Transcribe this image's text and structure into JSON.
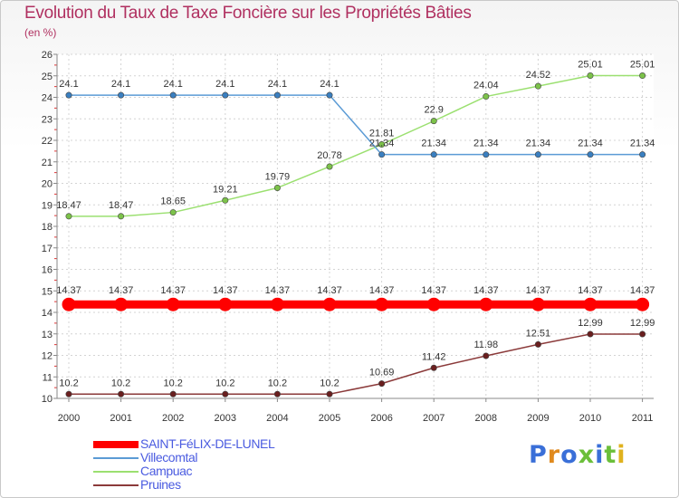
{
  "title": "Evolution du Taux de Taxe Foncière sur les Propriétés Bâties",
  "unit_label": "(en %)",
  "brand": "Proxiti",
  "chart_data": {
    "type": "line",
    "title": "Evolution du Taux de Taxe Foncière sur les Propriétés Bâties",
    "ylabel": "(en %)",
    "xlabel": "",
    "ylim": [
      10,
      26
    ],
    "yticks": [
      10,
      11,
      12,
      13,
      14,
      15,
      16,
      17,
      18,
      19,
      20,
      21,
      22,
      23,
      24,
      25,
      26
    ],
    "categories": [
      "2000",
      "2001",
      "2002",
      "2003",
      "2004",
      "2005",
      "2006",
      "2007",
      "2008",
      "2009",
      "2010",
      "2011"
    ],
    "legend_position": "bottom-left",
    "series": [
      {
        "name": "SAINT-FéLIX-DE-LUNEL",
        "color": "#ff0000",
        "point_color": "#ff0000",
        "values": [
          14.37,
          14.37,
          14.37,
          14.37,
          14.37,
          14.37,
          14.37,
          14.37,
          14.37,
          14.37,
          14.37,
          14.37
        ],
        "labels": [
          "14.37",
          "14.37",
          "14.37",
          "14.37",
          "14.37",
          "14.37",
          "14.37",
          "14.37",
          "14.37",
          "14.37",
          "14.37",
          "14.37"
        ]
      },
      {
        "name": "Villecomtal",
        "color": "#5b9bd5",
        "point_color": "#3a7fc0",
        "values": [
          24.1,
          24.1,
          24.1,
          24.1,
          24.1,
          24.1,
          21.34,
          21.34,
          21.34,
          21.34,
          21.34,
          21.34
        ],
        "labels": [
          "24.1",
          "24.1",
          "24.1",
          "24.1",
          "24.1",
          "24.1",
          "21.34",
          "21.34",
          "21.34",
          "21.34",
          "21.34",
          "21.34"
        ]
      },
      {
        "name": "Campuac",
        "color": "#9be070",
        "point_color": "#7cc24a",
        "values": [
          18.47,
          18.47,
          18.65,
          19.21,
          19.79,
          20.78,
          21.81,
          22.9,
          24.04,
          24.52,
          25.01,
          25.01
        ],
        "labels": [
          "18.47",
          "18.47",
          "18.65",
          "19.21",
          "19.79",
          "20.78",
          "21.81",
          "22.9",
          "24.04",
          "24.52",
          "25.01",
          "25.01"
        ]
      },
      {
        "name": "Pruines",
        "color": "#8b3a3a",
        "point_color": "#6a1f1f",
        "values": [
          10.2,
          10.2,
          10.2,
          10.2,
          10.2,
          10.2,
          10.69,
          11.42,
          11.98,
          12.51,
          12.99,
          12.99
        ],
        "labels": [
          "10.2",
          "10.2",
          "10.2",
          "10.2",
          "10.2",
          "10.2",
          "10.69",
          "11.42",
          "11.98",
          "12.51",
          "12.99",
          "12.99"
        ]
      }
    ]
  }
}
